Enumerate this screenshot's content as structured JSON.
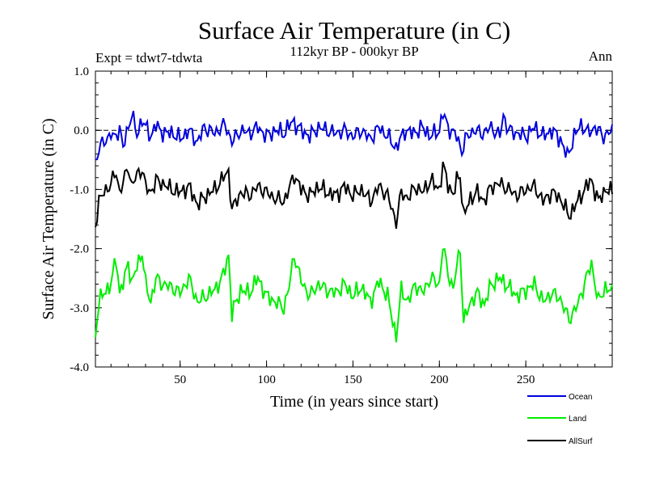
{
  "chart_data": {
    "type": "line",
    "title": "Surface Air Temperature (in C)",
    "subtitle": "112kyr BP - 000kyr BP",
    "experiment": "Expt = tdwt7-tdwta",
    "season": "Ann",
    "xlabel": "Time (in years since start)",
    "ylabel": "Surface Air Temperature (in C)",
    "xlim": [
      1,
      300
    ],
    "ylim": [
      -4.0,
      1.0
    ],
    "x_ticks": [
      50,
      100,
      150,
      200,
      250
    ],
    "x_tick_labels": [
      "50",
      "100",
      "150",
      "200",
      "250"
    ],
    "y_ticks": [
      -4.0,
      -3.0,
      -2.0,
      -1.0,
      0.0,
      1.0
    ],
    "y_tick_labels": [
      "-4.0",
      "-3.0",
      "-2.0",
      "-1.0",
      "0.0",
      "1.0"
    ],
    "reference_line": {
      "y": 0.0,
      "style": "dashed"
    },
    "series": [
      {
        "name": "Ocean",
        "color": "#0000dd",
        "keypoints": [
          [
            1,
            -0.55
          ],
          [
            3,
            -0.3
          ],
          [
            6,
            -0.2
          ],
          [
            10,
            -0.05
          ],
          [
            12,
            -0.15
          ],
          [
            15,
            0.05
          ],
          [
            17,
            -0.3
          ],
          [
            20,
            0.05
          ],
          [
            22,
            0.3
          ],
          [
            25,
            -0.1
          ],
          [
            28,
            0.2
          ],
          [
            30,
            0.05
          ],
          [
            33,
            -0.1
          ],
          [
            36,
            0.1
          ],
          [
            38,
            0.0
          ],
          [
            42,
            -0.05
          ],
          [
            46,
            -0.05
          ],
          [
            50,
            -0.15
          ],
          [
            55,
            0.0
          ],
          [
            60,
            -0.2
          ],
          [
            64,
            0.05
          ],
          [
            70,
            -0.05
          ],
          [
            76,
            0.1
          ],
          [
            80,
            -0.2
          ],
          [
            85,
            0.0
          ],
          [
            90,
            -0.05
          ],
          [
            95,
            0.05
          ],
          [
            100,
            -0.1
          ],
          [
            105,
            0.0
          ],
          [
            110,
            -0.05
          ],
          [
            115,
            0.15
          ],
          [
            120,
            0.0
          ],
          [
            125,
            -0.1
          ],
          [
            130,
            0.05
          ],
          [
            135,
            0.0
          ],
          [
            140,
            -0.05
          ],
          [
            145,
            0.0
          ],
          [
            150,
            -0.1
          ],
          [
            155,
            0.0
          ],
          [
            160,
            -0.15
          ],
          [
            165,
            0.05
          ],
          [
            170,
            -0.1
          ],
          [
            175,
            -0.3
          ],
          [
            180,
            0.0
          ],
          [
            185,
            -0.05
          ],
          [
            190,
            0.05
          ],
          [
            195,
            -0.1
          ],
          [
            200,
            0.0
          ],
          [
            202,
            0.3
          ],
          [
            205,
            0.05
          ],
          [
            210,
            -0.1
          ],
          [
            213,
            -0.35
          ],
          [
            216,
            -0.1
          ],
          [
            220,
            0.0
          ],
          [
            225,
            -0.05
          ],
          [
            230,
            0.05
          ],
          [
            235,
            -0.1
          ],
          [
            237,
            0.25
          ],
          [
            240,
            0.0
          ],
          [
            245,
            -0.05
          ],
          [
            250,
            -0.1
          ],
          [
            255,
            0.05
          ],
          [
            260,
            -0.1
          ],
          [
            265,
            0.0
          ],
          [
            270,
            -0.15
          ],
          [
            274,
            -0.45
          ],
          [
            278,
            -0.1
          ],
          [
            282,
            0.1
          ],
          [
            286,
            -0.05
          ],
          [
            290,
            0.05
          ],
          [
            295,
            -0.1
          ],
          [
            300,
            0.0
          ]
        ]
      },
      {
        "name": "Land",
        "color": "#00ee00",
        "keypoints": [
          [
            1,
            -3.45
          ],
          [
            3,
            -2.9
          ],
          [
            6,
            -2.75
          ],
          [
            10,
            -2.6
          ],
          [
            13,
            -2.15
          ],
          [
            15,
            -2.75
          ],
          [
            18,
            -2.5
          ],
          [
            20,
            -2.2
          ],
          [
            22,
            -2.6
          ],
          [
            25,
            -2.3
          ],
          [
            28,
            -2.05
          ],
          [
            30,
            -2.6
          ],
          [
            33,
            -2.9
          ],
          [
            36,
            -2.5
          ],
          [
            40,
            -2.6
          ],
          [
            45,
            -2.65
          ],
          [
            50,
            -2.75
          ],
          [
            55,
            -2.5
          ],
          [
            60,
            -2.9
          ],
          [
            65,
            -2.8
          ],
          [
            70,
            -2.7
          ],
          [
            75,
            -2.45
          ],
          [
            78,
            -2.1
          ],
          [
            80,
            -3.1
          ],
          [
            85,
            -2.7
          ],
          [
            90,
            -2.75
          ],
          [
            95,
            -2.5
          ],
          [
            100,
            -2.8
          ],
          [
            105,
            -2.9
          ],
          [
            110,
            -3.0
          ],
          [
            113,
            -2.65
          ],
          [
            116,
            -2.1
          ],
          [
            120,
            -2.55
          ],
          [
            125,
            -2.8
          ],
          [
            130,
            -2.6
          ],
          [
            135,
            -2.7
          ],
          [
            140,
            -2.75
          ],
          [
            145,
            -2.6
          ],
          [
            150,
            -2.8
          ],
          [
            155,
            -2.65
          ],
          [
            160,
            -2.9
          ],
          [
            165,
            -2.55
          ],
          [
            170,
            -2.8
          ],
          [
            175,
            -3.5
          ],
          [
            178,
            -2.7
          ],
          [
            182,
            -2.9
          ],
          [
            186,
            -2.6
          ],
          [
            190,
            -2.75
          ],
          [
            195,
            -2.5
          ],
          [
            200,
            -2.6
          ],
          [
            202,
            -1.95
          ],
          [
            205,
            -2.4
          ],
          [
            208,
            -2.7
          ],
          [
            210,
            -2.3
          ],
          [
            212,
            -2.0
          ],
          [
            214,
            -3.25
          ],
          [
            218,
            -2.9
          ],
          [
            222,
            -2.75
          ],
          [
            226,
            -2.95
          ],
          [
            230,
            -2.6
          ],
          [
            235,
            -2.5
          ],
          [
            240,
            -2.65
          ],
          [
            245,
            -2.8
          ],
          [
            250,
            -2.7
          ],
          [
            255,
            -2.6
          ],
          [
            260,
            -2.9
          ],
          [
            265,
            -2.75
          ],
          [
            270,
            -2.85
          ],
          [
            275,
            -3.2
          ],
          [
            280,
            -2.95
          ],
          [
            285,
            -2.5
          ],
          [
            288,
            -2.25
          ],
          [
            292,
            -2.9
          ],
          [
            296,
            -2.65
          ],
          [
            300,
            -2.75
          ]
        ]
      },
      {
        "name": "AllSurf",
        "color": "#000000",
        "keypoints": [
          [
            1,
            -1.6
          ],
          [
            3,
            -1.2
          ],
          [
            6,
            -1.05
          ],
          [
            10,
            -0.9
          ],
          [
            13,
            -0.7
          ],
          [
            15,
            -1.05
          ],
          [
            18,
            -0.8
          ],
          [
            20,
            -0.6
          ],
          [
            22,
            -0.95
          ],
          [
            25,
            -0.75
          ],
          [
            28,
            -0.65
          ],
          [
            30,
            -0.95
          ],
          [
            33,
            -1.05
          ],
          [
            36,
            -0.85
          ],
          [
            40,
            -0.9
          ],
          [
            45,
            -1.0
          ],
          [
            50,
            -1.05
          ],
          [
            55,
            -0.95
          ],
          [
            60,
            -1.25
          ],
          [
            65,
            -1.1
          ],
          [
            70,
            -1.0
          ],
          [
            75,
            -0.8
          ],
          [
            78,
            -0.7
          ],
          [
            80,
            -1.35
          ],
          [
            85,
            -1.05
          ],
          [
            90,
            -1.1
          ],
          [
            95,
            -0.95
          ],
          [
            100,
            -1.05
          ],
          [
            105,
            -1.15
          ],
          [
            110,
            -1.2
          ],
          [
            113,
            -1.0
          ],
          [
            116,
            -0.75
          ],
          [
            120,
            -1.0
          ],
          [
            125,
            -1.1
          ],
          [
            130,
            -0.95
          ],
          [
            135,
            -1.05
          ],
          [
            140,
            -1.1
          ],
          [
            145,
            -0.95
          ],
          [
            150,
            -1.1
          ],
          [
            155,
            -1.0
          ],
          [
            160,
            -1.2
          ],
          [
            165,
            -0.95
          ],
          [
            170,
            -1.1
          ],
          [
            175,
            -1.55
          ],
          [
            178,
            -1.05
          ],
          [
            182,
            -1.15
          ],
          [
            186,
            -0.95
          ],
          [
            190,
            -1.05
          ],
          [
            195,
            -0.85
          ],
          [
            200,
            -1.0
          ],
          [
            202,
            -0.6
          ],
          [
            205,
            -0.9
          ],
          [
            208,
            -1.1
          ],
          [
            210,
            -0.85
          ],
          [
            212,
            -0.75
          ],
          [
            214,
            -1.45
          ],
          [
            218,
            -1.15
          ],
          [
            222,
            -1.05
          ],
          [
            226,
            -1.2
          ],
          [
            230,
            -0.95
          ],
          [
            235,
            -0.9
          ],
          [
            240,
            -1.0
          ],
          [
            245,
            -1.1
          ],
          [
            250,
            -1.0
          ],
          [
            255,
            -0.95
          ],
          [
            260,
            -1.2
          ],
          [
            265,
            -1.05
          ],
          [
            270,
            -1.15
          ],
          [
            275,
            -1.45
          ],
          [
            280,
            -1.2
          ],
          [
            285,
            -0.95
          ],
          [
            288,
            -0.85
          ],
          [
            292,
            -1.2
          ],
          [
            296,
            -1.0
          ],
          [
            300,
            -1.05
          ]
        ]
      }
    ]
  }
}
